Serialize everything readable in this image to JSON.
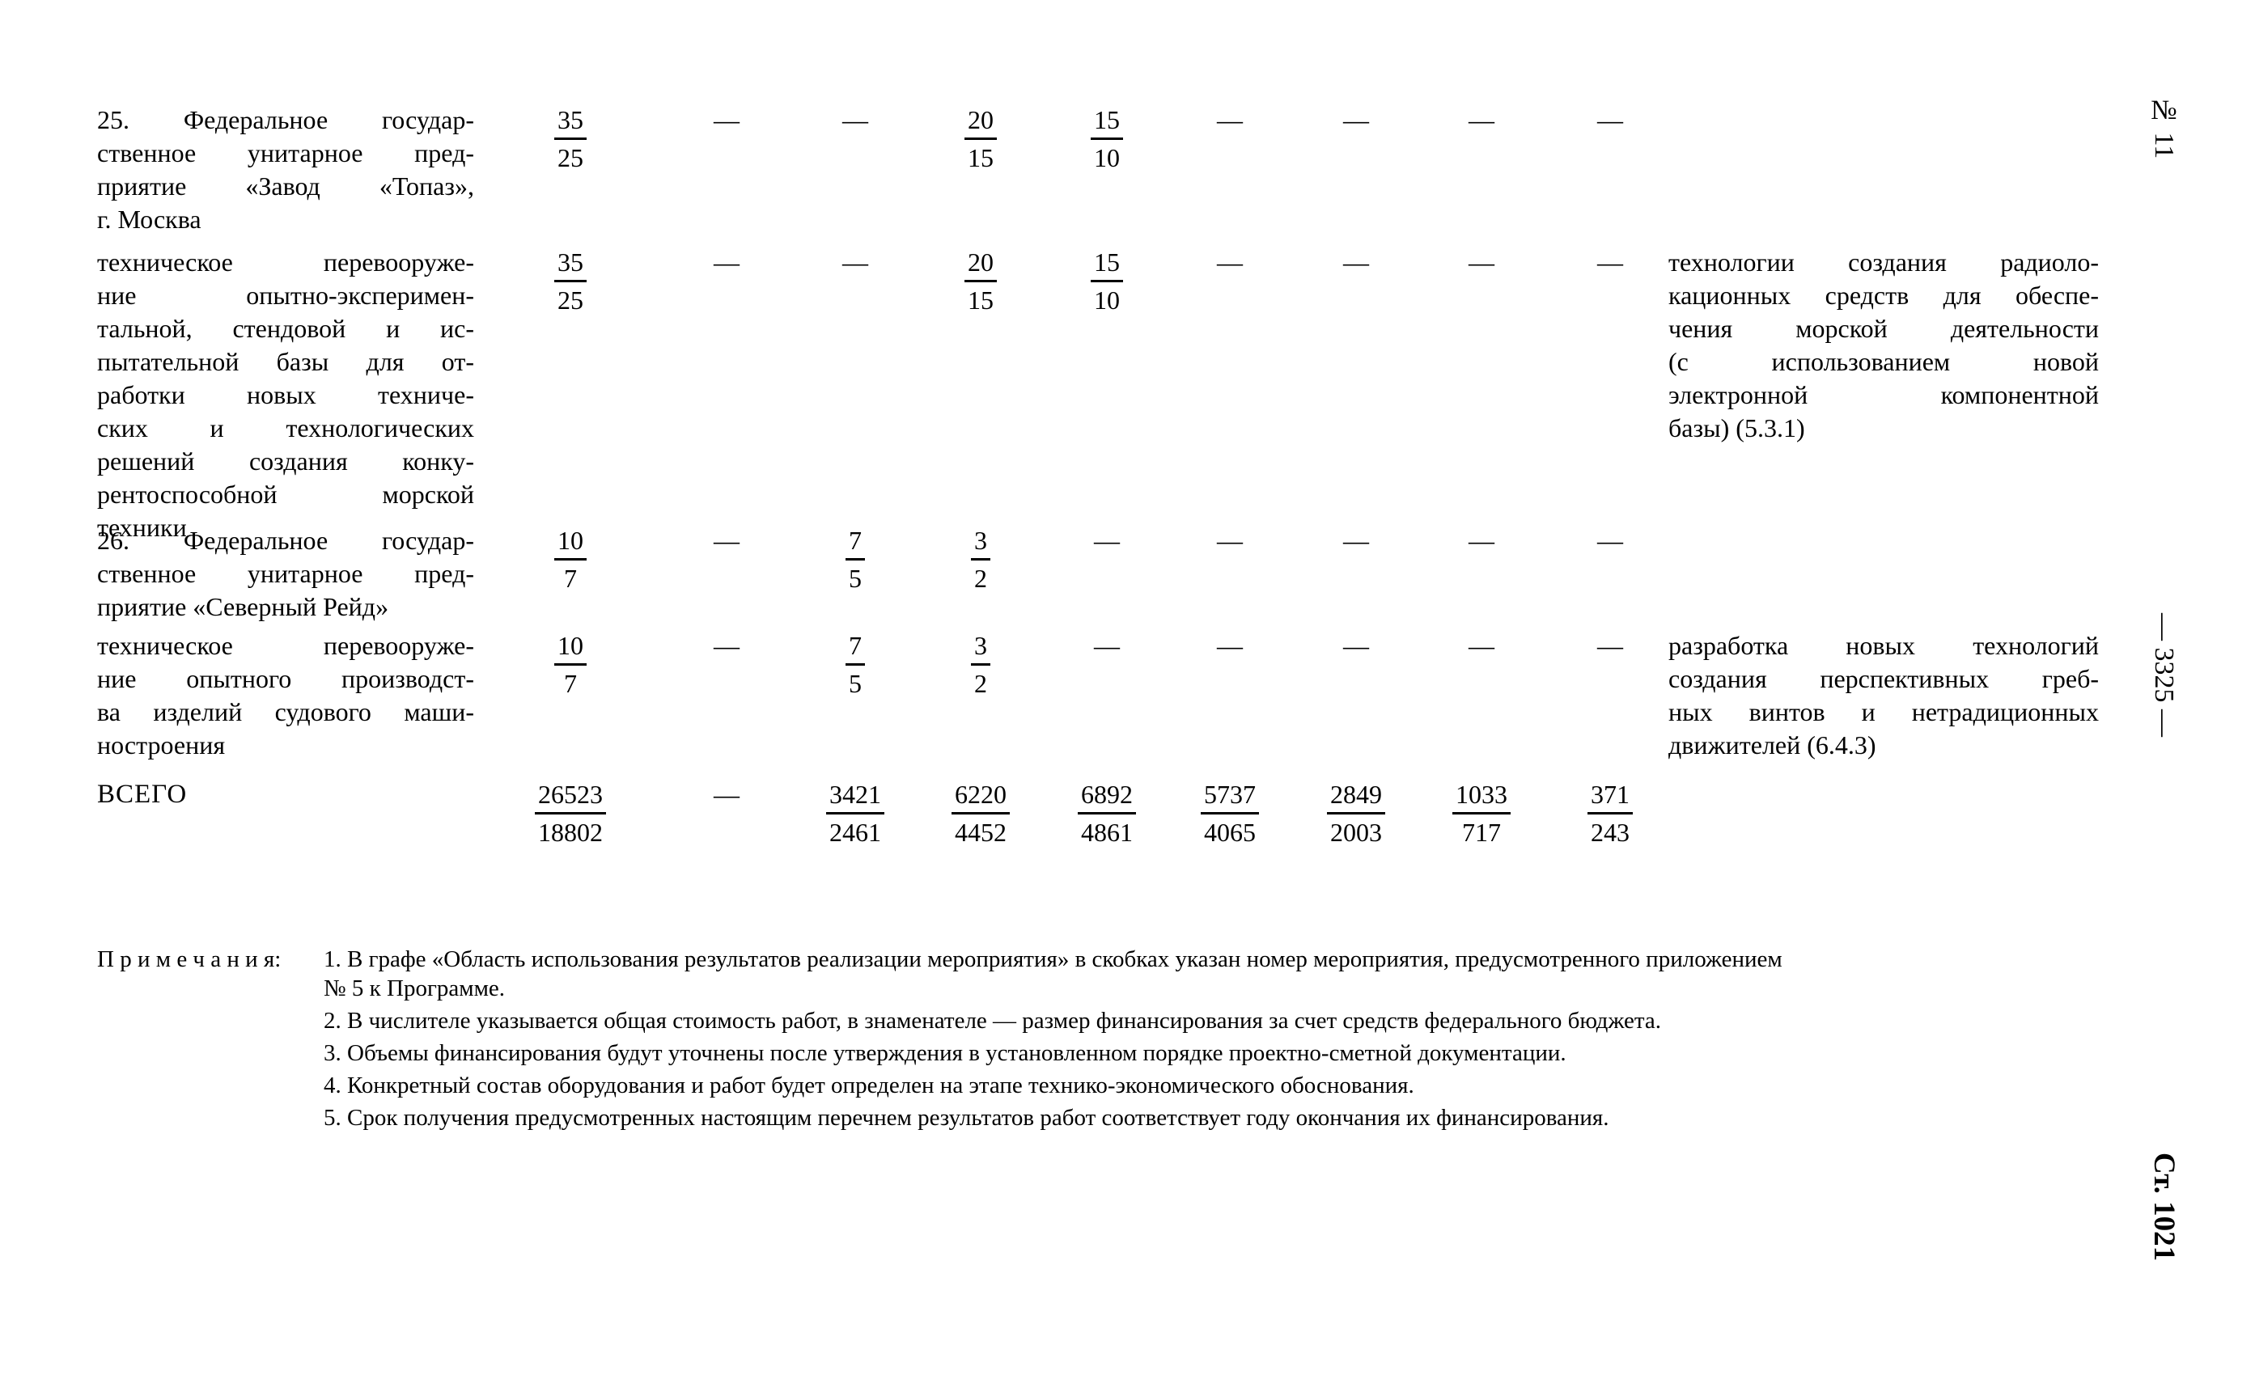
{
  "margin": {
    "issue_label": "№ 11",
    "page_label": "— 3325 —",
    "article_label": "Ст. 1021"
  },
  "table": {
    "rows": [
      {
        "label_lines": [
          "25. Федеральное государ-",
          "ственное унитарное пред-",
          "приятие «Завод «Топаз»,",
          "г. Москва"
        ],
        "values": [
          {
            "num": "35",
            "den": "25"
          },
          {
            "dash": "—"
          },
          {
            "dash": "—"
          },
          {
            "num": "20",
            "den": "15"
          },
          {
            "num": "15",
            "den": "10"
          },
          {
            "dash": "—"
          },
          {
            "dash": "—"
          },
          {
            "dash": "—"
          },
          {
            "dash": "—"
          }
        ],
        "result_lines": []
      },
      {
        "label_lines": [
          "техническое перевооруже-",
          "ние опытно-эксперимен-",
          "тальной, стендовой и ис-",
          "пытательной базы для от-",
          "работки новых техниче-",
          "ских и технологических",
          "решений создания конку-",
          "рентоспособной морской",
          "техники"
        ],
        "values": [
          {
            "num": "35",
            "den": "25"
          },
          {
            "dash": "—"
          },
          {
            "dash": "—"
          },
          {
            "num": "20",
            "den": "15"
          },
          {
            "num": "15",
            "den": "10"
          },
          {
            "dash": "—"
          },
          {
            "dash": "—"
          },
          {
            "dash": "—"
          },
          {
            "dash": "—"
          }
        ],
        "result_lines": [
          "технологии создания радиоло-",
          "кационных средств для обеспе-",
          "чения морской деятельности",
          "(с использованием новой",
          "электронной компонентной",
          "базы) (5.3.1)"
        ]
      },
      {
        "label_lines": [
          "26. Федеральное государ-",
          "ственное унитарное пред-",
          "приятие «Северный Рейд»"
        ],
        "values": [
          {
            "num": "10",
            "den": "7"
          },
          {
            "dash": "—"
          },
          {
            "num": "7",
            "den": "5"
          },
          {
            "num": "3",
            "den": "2"
          },
          {
            "dash": "—"
          },
          {
            "dash": "—"
          },
          {
            "dash": "—"
          },
          {
            "dash": "—"
          },
          {
            "dash": "—"
          }
        ],
        "result_lines": []
      },
      {
        "label_lines": [
          "техническое перевооруже-",
          "ние опытного производст-",
          "ва изделий судового маши-",
          "ностроения"
        ],
        "values": [
          {
            "num": "10",
            "den": "7"
          },
          {
            "dash": "—"
          },
          {
            "num": "7",
            "den": "5"
          },
          {
            "num": "3",
            "den": "2"
          },
          {
            "dash": "—"
          },
          {
            "dash": "—"
          },
          {
            "dash": "—"
          },
          {
            "dash": "—"
          },
          {
            "dash": "—"
          }
        ],
        "result_lines": [
          "разработка новых технологий",
          "создания перспективных греб-",
          "ных винтов и нетрадиционных",
          "движителей (6.4.3)"
        ]
      },
      {
        "label_lines": [
          "ВСЕГО"
        ],
        "values": [
          {
            "num": "26523",
            "den": "18802"
          },
          {
            "dash": "—"
          },
          {
            "num": "3421",
            "den": "2461"
          },
          {
            "num": "6220",
            "den": "4452"
          },
          {
            "num": "6892",
            "den": "4861"
          },
          {
            "num": "5737",
            "den": "4065"
          },
          {
            "num": "2849",
            "den": "2003"
          },
          {
            "num": "1033",
            "den": "717"
          },
          {
            "num": "371",
            "den": "243"
          }
        ],
        "result_lines": []
      }
    ]
  },
  "notes": {
    "label": "П р и м е ч а н и я:",
    "items": [
      {
        "lines": [
          "1. В графе «Область использования результатов реализации мероприятия» в скобках указан номер мероприятия, предусмотренного приложением",
          "№ 5 к Программе."
        ]
      },
      {
        "lines": [
          "2. В числителе указывается общая стоимость работ, в знаменателе — размер финансирования за счет средств федерального бюджета."
        ]
      },
      {
        "lines": [
          "3. Объемы финансирования будут уточнены после утверждения в установленном порядке проектно-сметной документации."
        ]
      },
      {
        "lines": [
          "4. Конкретный состав оборудования и работ будет определен на этапе технико-экономического обоснования."
        ]
      },
      {
        "lines": [
          "5. Срок получения предусмотренных настоящим перечнем результатов работ соответствует году окончания их финансирования."
        ]
      }
    ]
  }
}
